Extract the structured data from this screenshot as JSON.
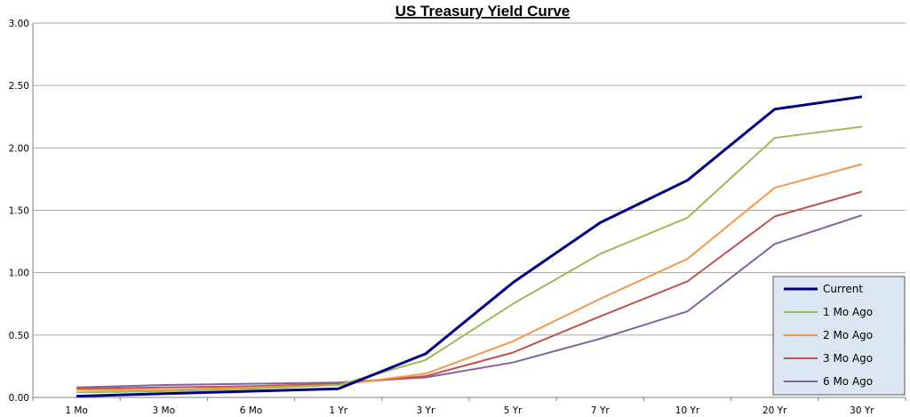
{
  "chart_data": {
    "type": "line",
    "title": "US Treasury Yield Curve",
    "xlabel": "",
    "ylabel": "",
    "categories": [
      "1 Mo",
      "3 Mo",
      "6 Mo",
      "1 Yr",
      "3 Yr",
      "5 Yr",
      "7 Yr",
      "10 Yr",
      "20 Yr",
      "30 Yr"
    ],
    "ylim": [
      0,
      3
    ],
    "yticks": [
      "0.00",
      "0.50",
      "1.00",
      "1.50",
      "2.00",
      "2.50",
      "3.00"
    ],
    "grid": true,
    "legend_position": "bottom-right",
    "series": [
      {
        "name": "Current",
        "color": "#000080",
        "values": [
          0.01,
          0.03,
          0.05,
          0.07,
          0.35,
          0.92,
          1.4,
          1.74,
          2.31,
          2.41
        ]
      },
      {
        "name": "1 Mo Ago",
        "color": "#9BBB59",
        "values": [
          0.04,
          0.05,
          0.07,
          0.1,
          0.3,
          0.75,
          1.15,
          1.44,
          2.08,
          2.17
        ]
      },
      {
        "name": "2 Mo Ago",
        "color": "#F79646",
        "values": [
          0.06,
          0.06,
          0.08,
          0.1,
          0.19,
          0.45,
          0.79,
          1.11,
          1.68,
          1.87
        ]
      },
      {
        "name": "3 Mo Ago",
        "color": "#C0504D",
        "values": [
          0.07,
          0.08,
          0.09,
          0.11,
          0.17,
          0.36,
          0.65,
          0.93,
          1.45,
          1.65
        ]
      },
      {
        "name": "6 Mo Ago",
        "color": "#8064A2",
        "values": [
          0.08,
          0.1,
          0.11,
          0.12,
          0.16,
          0.28,
          0.47,
          0.69,
          1.23,
          1.46
        ]
      }
    ]
  }
}
